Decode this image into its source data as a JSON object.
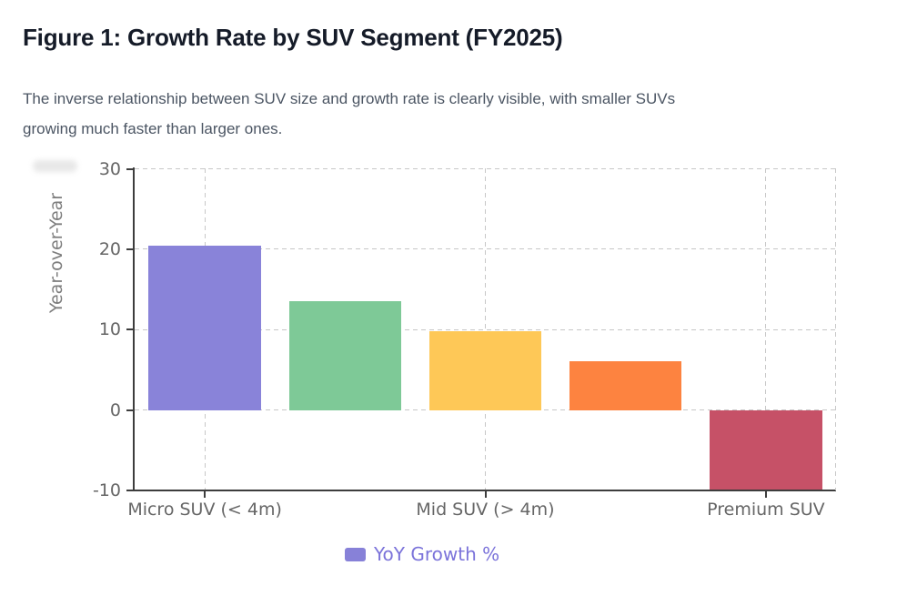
{
  "figure": {
    "title": "Figure 1: Growth Rate by SUV Segment (FY2025)",
    "subtitle_line1": "The inverse relationship between SUV size and growth rate is clearly visible, with smaller SUVs",
    "subtitle_line2": "growing much faster than larger ones."
  },
  "chart_data": {
    "type": "bar",
    "categories": [
      "Micro SUV (< 4m)",
      "",
      "Mid SUV (> 4m)",
      "",
      "Premium SUV"
    ],
    "series": [
      {
        "name": "YoY Growth %",
        "values": [
          20.4,
          13.5,
          9.8,
          6.1,
          -10.0
        ]
      }
    ],
    "bar_colors": [
      "#8983D9",
      "#7EC997",
      "#FEC857",
      "#FD8340",
      "#C65167"
    ],
    "ylabel": "Year-over-Year",
    "xlabel": "",
    "yticks": [
      30,
      20,
      10,
      0,
      -10
    ],
    "ylim": [
      -10,
      30
    ],
    "grid": true,
    "grid_style": "dashed",
    "bar_width_fraction": 0.8,
    "legend_position": "bottom-center"
  },
  "legend": {
    "label": "YoY Growth %",
    "swatch_color": "#8781D8",
    "text_color": "#7B73DA"
  },
  "colors": {
    "title": "#151B28",
    "subtitle": "#4B5563",
    "axis_spine": "#3D3D3D",
    "tick_label": "#666666",
    "axis_label": "#7E7E7E",
    "gridline": "#C7C7C7",
    "background": "#FFFFFF"
  }
}
